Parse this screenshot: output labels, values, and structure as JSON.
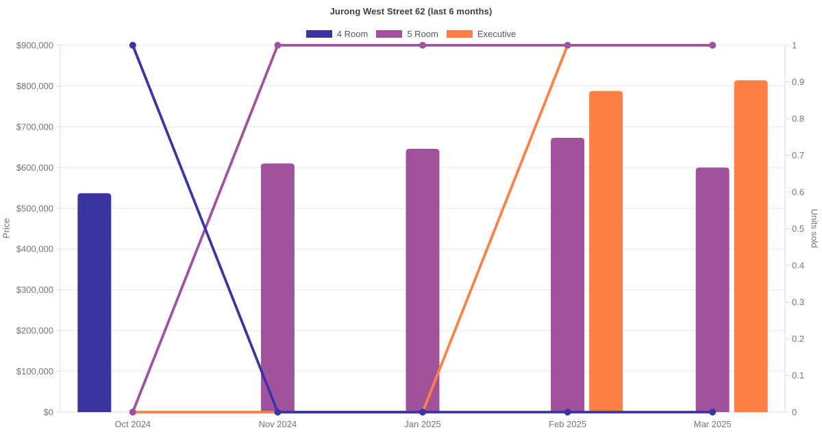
{
  "chart_data": {
    "type": "mixed-bar-line",
    "title": "Jurong West Street 62 (last 6 months)",
    "categories": [
      "Oct 2024",
      "Nov 2024",
      "Jan 2025",
      "Feb 2025",
      "Mar 2025"
    ],
    "left_axis": {
      "label": "Price",
      "min": 0,
      "max": 900000,
      "tick_values": [
        0,
        100000,
        200000,
        300000,
        400000,
        500000,
        600000,
        700000,
        800000,
        900000
      ],
      "tick_labels": [
        "$0",
        "$100,000",
        "$200,000",
        "$300,000",
        "$400,000",
        "$500,000",
        "$600,000",
        "$700,000",
        "$800,000",
        "$900,000"
      ]
    },
    "right_axis": {
      "label": "Units sold",
      "min": 0,
      "max": 1,
      "tick_values": [
        0,
        0.1,
        0.2,
        0.3,
        0.4,
        0.5,
        0.6,
        0.7,
        0.8,
        0.9,
        1
      ],
      "tick_labels": [
        "0",
        "0.1",
        "0.2",
        "0.3",
        "0.4",
        "0.5",
        "0.6",
        "0.7",
        "0.8",
        "0.9",
        "1"
      ]
    },
    "legend_position": "top",
    "grid": "horizontal",
    "series": [
      {
        "name": "4 Room",
        "color": "#3b34a3",
        "bar_values_price": [
          537000,
          null,
          null,
          null,
          null
        ],
        "line_values_units_sold": [
          1,
          0,
          0,
          0,
          0
        ]
      },
      {
        "name": "5 Room",
        "color": "#a1529c",
        "bar_values_price": [
          null,
          610000,
          646000,
          673000,
          600000
        ],
        "line_values_units_sold": [
          0,
          1,
          1,
          1,
          1
        ]
      },
      {
        "name": "Executive",
        "color": "#fd7f42",
        "bar_values_price": [
          null,
          null,
          null,
          788000,
          814000
        ],
        "line_values_units_sold": [
          0,
          0,
          0,
          1,
          1
        ]
      }
    ],
    "colors": {
      "background": "#ffffff",
      "grid": "#e7e7e7",
      "axis": "#d9d9d9",
      "tick_text": "#74747c",
      "title_text": "#3d3d44",
      "legend_text": "#56565e"
    }
  }
}
